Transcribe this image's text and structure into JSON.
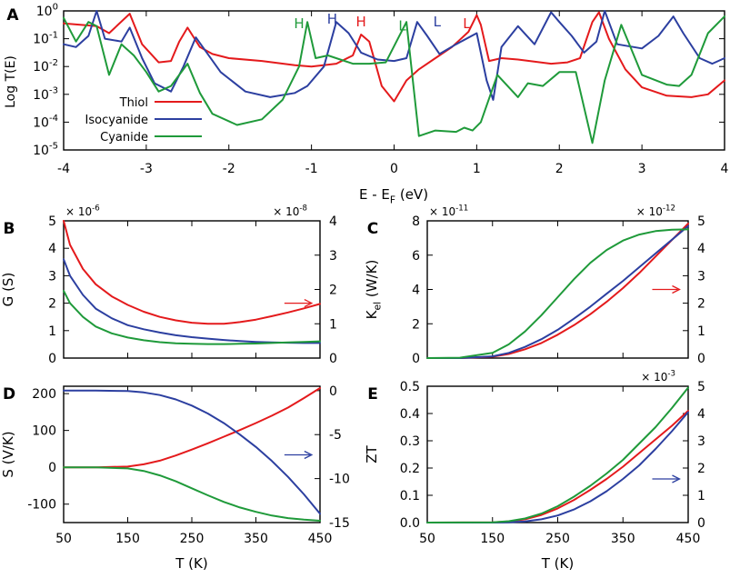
{
  "colors": {
    "thiol": "#e41a1c",
    "isocyanide": "#2c3fa0",
    "cyanide": "#1f9a3a"
  },
  "chart_data": [
    {
      "panel": "A",
      "type": "line",
      "xlabel": "E - E",
      "xlabel_sub": "F",
      "xlabel_unit": "(eV)",
      "ylabel": "Log T(E)",
      "xlim": [
        -4,
        4
      ],
      "ylim_log10": [
        -5,
        0
      ],
      "xticks": [
        "-4",
        "-3",
        "-2",
        "-1",
        "0",
        "1",
        "2",
        "3",
        "4"
      ],
      "yticks": [
        {
          "base": "10",
          "exp": "-5"
        },
        {
          "base": "10",
          "exp": "-4"
        },
        {
          "base": "10",
          "exp": "-3"
        },
        {
          "base": "10",
          "exp": "-2"
        },
        {
          "base": "10",
          "exp": "-1"
        },
        {
          "base": "10",
          "exp": "0"
        }
      ],
      "legend": [
        "Thiol",
        "Isocyanide",
        "Cyanide"
      ],
      "legend_position": "lower-left",
      "annotations": [
        {
          "text": "H",
          "x": -1.15,
          "y_log": -0.62,
          "series": "cyanide"
        },
        {
          "text": "H",
          "x": -0.75,
          "y_log": -0.45,
          "series": "isocyanide"
        },
        {
          "text": "H",
          "x": -0.4,
          "y_log": -0.55,
          "series": "thiol"
        },
        {
          "text": "L",
          "x": 0.1,
          "y_log": -0.7,
          "series": "cyanide"
        },
        {
          "text": "L",
          "x": 0.52,
          "y_log": -0.55,
          "series": "isocyanide"
        },
        {
          "text": "L",
          "x": 0.88,
          "y_log": -0.62,
          "series": "thiol"
        }
      ],
      "series": [
        {
          "name": "Thiol",
          "key": "thiol",
          "x": [
            -4,
            -3.8,
            -3.6,
            -3.45,
            -3.2,
            -3.05,
            -2.85,
            -2.7,
            -2.6,
            -2.5,
            -2.35,
            -2.2,
            -2,
            -1.6,
            -1.2,
            -1,
            -0.7,
            -0.5,
            -0.4,
            -0.3,
            -0.15,
            0,
            0.15,
            0.3,
            0.5,
            0.7,
            0.9,
            1,
            1.05,
            1.15,
            1.3,
            1.5,
            1.9,
            2.1,
            2.25,
            2.4,
            2.48,
            2.6,
            2.8,
            3,
            3.3,
            3.6,
            3.8,
            4
          ],
          "log10": [
            -0.45,
            -0.5,
            -0.55,
            -0.8,
            -0.1,
            -1.2,
            -1.85,
            -1.8,
            -1.1,
            -0.6,
            -1.3,
            -1.55,
            -1.7,
            -1.8,
            -1.95,
            -2.0,
            -1.9,
            -1.6,
            -0.85,
            -1.1,
            -2.7,
            -3.25,
            -2.5,
            -2.1,
            -1.7,
            -1.3,
            -0.75,
            -0.15,
            -0.5,
            -1.8,
            -1.7,
            -1.75,
            -1.9,
            -1.85,
            -1.7,
            -0.4,
            -0.05,
            -1.0,
            -2.1,
            -2.75,
            -3.05,
            -3.1,
            -3.0,
            -2.5
          ]
        },
        {
          "name": "Isocyanide",
          "key": "isocyanide",
          "x": [
            -4,
            -3.85,
            -3.7,
            -3.6,
            -3.5,
            -3.3,
            -3.2,
            -3.05,
            -2.9,
            -2.7,
            -2.55,
            -2.4,
            -2.1,
            -1.8,
            -1.5,
            -1.2,
            -1.05,
            -0.85,
            -0.7,
            -0.55,
            -0.4,
            -0.2,
            0,
            0.15,
            0.28,
            0.4,
            0.55,
            0.75,
            1,
            1.12,
            1.2,
            1.3,
            1.5,
            1.7,
            1.9,
            2,
            2.15,
            2.3,
            2.45,
            2.55,
            2.7,
            3,
            3.2,
            3.38,
            3.5,
            3.7,
            3.85,
            4
          ],
          "log10": [
            -1.2,
            -1.3,
            -0.9,
            0,
            -1.0,
            -1.1,
            -0.6,
            -1.7,
            -2.6,
            -2.9,
            -2.0,
            -0.95,
            -2.2,
            -2.9,
            -3.1,
            -2.95,
            -2.7,
            -2.0,
            -0.4,
            -0.8,
            -1.5,
            -1.75,
            -1.8,
            -1.7,
            -0.4,
            -0.9,
            -1.55,
            -1.2,
            -0.8,
            -2.5,
            -3.2,
            -1.3,
            -0.55,
            -1.2,
            -0.05,
            -0.4,
            -0.9,
            -1.5,
            -1.1,
            0,
            -1.2,
            -1.35,
            -0.9,
            -0.2,
            -0.8,
            -1.7,
            -1.9,
            -1.7
          ]
        },
        {
          "name": "Cyanide",
          "key": "cyanide",
          "x": [
            -4,
            -3.85,
            -3.7,
            -3.6,
            -3.45,
            -3.3,
            -3.15,
            -3.0,
            -2.85,
            -2.7,
            -2.5,
            -2.35,
            -2.2,
            -1.9,
            -1.6,
            -1.35,
            -1.15,
            -1.05,
            -0.95,
            -0.8,
            -0.5,
            -0.3,
            -0.1,
            0.15,
            0.3,
            0.5,
            0.75,
            0.85,
            0.95,
            1.05,
            1.25,
            1.5,
            1.62,
            1.8,
            2.0,
            2.2,
            2.4,
            2.55,
            2.75,
            3.0,
            3.3,
            3.45,
            3.6,
            3.8,
            4
          ],
          "log10": [
            -0.25,
            -1.1,
            -0.4,
            -0.55,
            -2.3,
            -1.2,
            -1.6,
            -2.2,
            -2.9,
            -2.7,
            -1.9,
            -2.95,
            -3.7,
            -4.1,
            -3.9,
            -3.2,
            -2.0,
            -0.4,
            -1.7,
            -1.6,
            -1.9,
            -1.9,
            -1.85,
            -0.4,
            -4.5,
            -4.3,
            -4.35,
            -4.2,
            -4.3,
            -4.0,
            -2.3,
            -3.1,
            -2.6,
            -2.7,
            -2.2,
            -2.2,
            -4.75,
            -2.5,
            -0.5,
            -2.3,
            -2.65,
            -2.7,
            -2.3,
            -0.8,
            -0.2
          ]
        }
      ]
    },
    {
      "panel": "B",
      "type": "line",
      "xlabel": "",
      "ylabel": "G (S)",
      "xlim": [
        50,
        450
      ],
      "ylim": [
        0,
        5
      ],
      "ylim_right": [
        0,
        4
      ],
      "left_multiplier": {
        "base": "× 10",
        "exp": "-6"
      },
      "right_multiplier": {
        "base": "× 10",
        "exp": "-8"
      },
      "yticks": [
        "0",
        "1",
        "2",
        "3",
        "4",
        "5"
      ],
      "yticks_right": [
        "0",
        "1",
        "2",
        "3",
        "4"
      ],
      "arrow": {
        "direction": "right",
        "color": "thiol",
        "x": 420,
        "y_right": 1.6
      },
      "series": [
        {
          "name": "Thiol",
          "key": "thiol",
          "axis": "right",
          "x": [
            50,
            60,
            80,
            100,
            125,
            150,
            175,
            200,
            225,
            250,
            275,
            300,
            325,
            350,
            375,
            400,
            425,
            450
          ],
          "values": [
            4.0,
            3.3,
            2.6,
            2.15,
            1.8,
            1.55,
            1.35,
            1.2,
            1.1,
            1.03,
            1.0,
            1.0,
            1.05,
            1.12,
            1.22,
            1.33,
            1.45,
            1.58
          ]
        },
        {
          "name": "Isocyanide",
          "key": "isocyanide",
          "axis": "left",
          "x": [
            50,
            60,
            80,
            100,
            125,
            150,
            175,
            200,
            225,
            250,
            275,
            300,
            325,
            350,
            375,
            400,
            425,
            450
          ],
          "values": [
            3.6,
            3.0,
            2.3,
            1.8,
            1.45,
            1.2,
            1.05,
            0.93,
            0.83,
            0.76,
            0.71,
            0.66,
            0.62,
            0.59,
            0.57,
            0.56,
            0.55,
            0.55
          ]
        },
        {
          "name": "Cyanide",
          "key": "cyanide",
          "axis": "left",
          "x": [
            50,
            60,
            80,
            100,
            125,
            150,
            175,
            200,
            225,
            250,
            275,
            300,
            325,
            350,
            375,
            400,
            425,
            450
          ],
          "values": [
            2.45,
            2.0,
            1.5,
            1.15,
            0.9,
            0.75,
            0.65,
            0.58,
            0.54,
            0.52,
            0.51,
            0.51,
            0.52,
            0.53,
            0.55,
            0.57,
            0.59,
            0.61
          ]
        }
      ]
    },
    {
      "panel": "C",
      "type": "line",
      "xlabel": "",
      "ylabel": "K",
      "ylabel_sub": "el",
      "ylabel_unit": "(W/K)",
      "xlim": [
        50,
        450
      ],
      "ylim": [
        0,
        8
      ],
      "ylim_right": [
        0,
        5
      ],
      "left_multiplier": {
        "base": "× 10",
        "exp": "-11"
      },
      "right_multiplier": {
        "base": "× 10",
        "exp": "-12"
      },
      "yticks": [
        "0",
        "2",
        "4",
        "6",
        "8"
      ],
      "yticks_right": [
        "0",
        "1",
        "2",
        "3",
        "4",
        "5"
      ],
      "arrow": {
        "direction": "right",
        "color": "thiol",
        "x": 420,
        "y_right": 2.5
      },
      "series": [
        {
          "name": "Thiol",
          "key": "thiol",
          "axis": "right",
          "x": [
            50,
            100,
            150,
            175,
            200,
            225,
            250,
            275,
            300,
            325,
            350,
            375,
            400,
            425,
            450
          ],
          "values": [
            0,
            0,
            0.05,
            0.15,
            0.32,
            0.55,
            0.85,
            1.2,
            1.6,
            2.05,
            2.55,
            3.1,
            3.7,
            4.3,
            4.9
          ]
        },
        {
          "name": "Isocyanide",
          "key": "isocyanide",
          "axis": "left",
          "x": [
            50,
            100,
            150,
            175,
            200,
            225,
            250,
            275,
            300,
            325,
            350,
            375,
            400,
            425,
            450
          ],
          "values": [
            0,
            0,
            0.1,
            0.3,
            0.65,
            1.1,
            1.65,
            2.3,
            3.0,
            3.75,
            4.5,
            5.3,
            6.1,
            6.9,
            7.7
          ]
        },
        {
          "name": "Cyanide",
          "key": "cyanide",
          "axis": "left",
          "x": [
            50,
            100,
            150,
            175,
            200,
            225,
            250,
            275,
            300,
            325,
            350,
            375,
            400,
            425,
            450
          ],
          "values": [
            0,
            0.02,
            0.3,
            0.8,
            1.55,
            2.5,
            3.55,
            4.6,
            5.55,
            6.3,
            6.85,
            7.2,
            7.4,
            7.48,
            7.5
          ]
        }
      ]
    },
    {
      "panel": "D",
      "type": "line",
      "xlabel": "T (K)",
      "ylabel": "S (V/K)",
      "xlim": [
        50,
        450
      ],
      "ylim": [
        -150,
        220
      ],
      "ylim_right": [
        -15,
        0.5
      ],
      "xticks": [
        "50",
        "150",
        "250",
        "350",
        "450"
      ],
      "yticks": [
        {
          "v": -100,
          "label": "-100"
        },
        {
          "v": 0,
          "label": "0"
        },
        {
          "v": 100,
          "label": "100"
        },
        {
          "v": 200,
          "label": "200"
        }
      ],
      "yticks_right": [
        {
          "v": -15,
          "label": "-15"
        },
        {
          "v": -10,
          "label": "-10"
        },
        {
          "v": -5,
          "label": "-5"
        },
        {
          "v": 0,
          "label": "0"
        }
      ],
      "arrow": {
        "direction": "right",
        "color": "isocyanide",
        "x": 420,
        "y_right": -7.3
      },
      "series": [
        {
          "name": "Thiol",
          "key": "thiol",
          "axis": "left",
          "x": [
            50,
            100,
            150,
            175,
            200,
            225,
            250,
            275,
            300,
            325,
            350,
            375,
            400,
            425,
            450
          ],
          "values": [
            0,
            0,
            2,
            8,
            18,
            32,
            48,
            65,
            83,
            101,
            120,
            140,
            162,
            188,
            215
          ]
        },
        {
          "name": "Isocyanide",
          "key": "isocyanide",
          "axis": "right",
          "x": [
            50,
            100,
            150,
            175,
            200,
            225,
            250,
            275,
            300,
            325,
            350,
            375,
            400,
            425,
            450
          ],
          "values": [
            0,
            0,
            -0.05,
            -0.2,
            -0.5,
            -1.0,
            -1.7,
            -2.6,
            -3.7,
            -5.0,
            -6.4,
            -8.0,
            -9.8,
            -11.8,
            -14.0
          ]
        },
        {
          "name": "Cyanide",
          "key": "cyanide",
          "axis": "left",
          "x": [
            50,
            100,
            150,
            175,
            200,
            225,
            250,
            275,
            300,
            325,
            350,
            375,
            400,
            425,
            450
          ],
          "values": [
            0,
            0,
            -3,
            -10,
            -22,
            -38,
            -57,
            -76,
            -94,
            -109,
            -121,
            -131,
            -138,
            -142,
            -145
          ]
        }
      ]
    },
    {
      "panel": "E",
      "type": "line",
      "xlabel": "T (K)",
      "ylabel": "ZT",
      "xlim": [
        50,
        450
      ],
      "ylim": [
        0,
        0.5
      ],
      "ylim_right": [
        0,
        5
      ],
      "right_multiplier": {
        "base": "× 10",
        "exp": "-3"
      },
      "xticks": [
        "50",
        "150",
        "250",
        "350",
        "450"
      ],
      "yticks": [
        "0.0",
        "0.1",
        "0.2",
        "0.3",
        "0.4",
        "0.5"
      ],
      "yticks_right": [
        "0",
        "1",
        "2",
        "3",
        "4",
        "5"
      ],
      "arrow": {
        "direction": "right",
        "color": "isocyanide",
        "x": 420,
        "y_right": 1.6
      },
      "series": [
        {
          "name": "Thiol",
          "key": "thiol",
          "axis": "left",
          "x": [
            50,
            150,
            175,
            200,
            225,
            250,
            275,
            300,
            325,
            350,
            375,
            400,
            425,
            450
          ],
          "values": [
            0,
            0.001,
            0.004,
            0.012,
            0.028,
            0.052,
            0.083,
            0.12,
            0.16,
            0.205,
            0.255,
            0.305,
            0.355,
            0.41
          ]
        },
        {
          "name": "Isocyanide",
          "key": "isocyanide",
          "axis": "right",
          "x": [
            50,
            150,
            175,
            200,
            225,
            250,
            275,
            300,
            325,
            350,
            375,
            400,
            425,
            450
          ],
          "values": [
            0,
            0,
            0.01,
            0.04,
            0.12,
            0.26,
            0.48,
            0.78,
            1.15,
            1.6,
            2.1,
            2.7,
            3.35,
            4.05
          ]
        },
        {
          "name": "Cyanide",
          "key": "cyanide",
          "axis": "left",
          "x": [
            50,
            150,
            175,
            200,
            225,
            250,
            275,
            300,
            325,
            350,
            375,
            400,
            425,
            450
          ],
          "values": [
            0,
            0.001,
            0.005,
            0.015,
            0.033,
            0.06,
            0.095,
            0.135,
            0.18,
            0.23,
            0.29,
            0.35,
            0.42,
            0.495
          ]
        }
      ]
    }
  ]
}
